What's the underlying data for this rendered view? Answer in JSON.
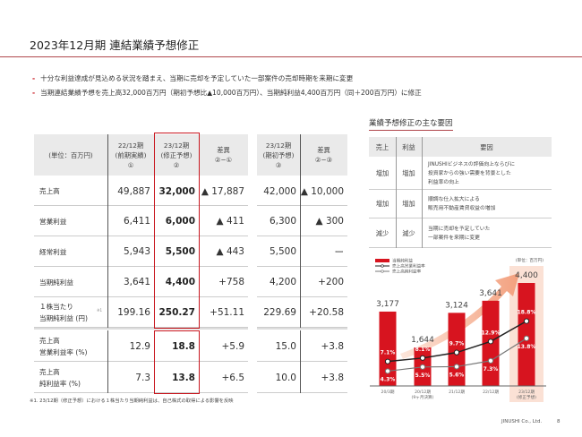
{
  "title": "2023年12月期 連結業績予想修正",
  "bullets": [
    "十分な利益達成が見込める状況を踏まえ、当期に売却を予定していた一部案件の売却時期を来期に変更",
    "当期連結業績予想を売上高32,000百万円（期初予想比▲10,000百万円）、当期純利益4,400百万円（同＋200百万円）に修正"
  ],
  "table": {
    "headers": [
      [
        "(単位：百万円)"
      ],
      [
        "22/12期",
        "(前期実績)",
        "①"
      ],
      [
        "23/12期",
        "(修正予想)",
        "②"
      ],
      [
        "差異",
        "②−①"
      ],
      [
        "23/12期",
        "(期初予想)",
        "③"
      ],
      [
        "差異",
        "②−③"
      ]
    ],
    "rows": [
      {
        "label": [
          "売上高"
        ],
        "values": [
          "49,887",
          "32,000",
          "▲ 17,887",
          "42,000",
          "▲ 10,000"
        ]
      },
      {
        "label": [
          "営業利益"
        ],
        "values": [
          "6,411",
          "6,000",
          "▲ 411",
          "6,300",
          "▲ 300"
        ]
      },
      {
        "label": [
          "経常利益"
        ],
        "values": [
          "5,943",
          "5,500",
          "▲ 443",
          "5,500",
          "ー"
        ]
      },
      {
        "label": [
          "当期純利益"
        ],
        "values": [
          "3,641",
          "4,400",
          "+758",
          "4,200",
          "+200"
        ]
      },
      {
        "label": [
          "１株当たり",
          "当期純利益 (円)"
        ],
        "note": "※1",
        "values": [
          "199.16",
          "250.27",
          "+51.11",
          "229.69",
          "+20.58"
        ]
      },
      {
        "label": [
          "売上高",
          "営業利益率 (%)"
        ],
        "values": [
          "12.9",
          "18.8",
          "+5.9",
          "15.0",
          "+3.8"
        ]
      },
      {
        "label": [
          "売上高",
          "純利益率 (%)"
        ],
        "values": [
          "7.3",
          "13.8",
          "+6.5",
          "10.0",
          "+3.8"
        ]
      }
    ]
  },
  "factors": {
    "title": "業績予想修正の主な要因",
    "headers": [
      "売上",
      "利益",
      "要因"
    ],
    "rows": [
      {
        "sales": "増加",
        "profit": "増加",
        "reason": [
          "JINUSHIビジネスの評価向上ならびに",
          "投資家からの強い需要を背景とした",
          "利益率の向上"
        ]
      },
      {
        "sales": "増加",
        "profit": "増加",
        "reason": [
          "順調な仕入拡大による",
          "販売用不動産賃貸収益の増加"
        ]
      },
      {
        "sales": "減少",
        "profit": "減少",
        "reason": [
          "当期に売却を予定していた",
          "一部案件を来期に変更"
        ]
      }
    ]
  },
  "chart_data": {
    "type": "bar",
    "unit": "(単位：百万円)",
    "legend": [
      "当期純利益",
      "売上高営業利益率",
      "売上高純利益率"
    ],
    "categories": [
      [
        "20/3期"
      ],
      [
        "20/12期",
        "(9ヶ月決算)"
      ],
      [
        "21/12期"
      ],
      [
        "22/12期"
      ],
      [
        "23/12期",
        "(修正予想)"
      ]
    ],
    "bar_series": {
      "name": "当期純利益",
      "values": [
        3177,
        1644,
        3124,
        3641,
        4400
      ],
      "labels": [
        "3,177",
        "1,644",
        "3,124",
        "3,641",
        "4,400"
      ]
    },
    "line_series": [
      {
        "name": "売上高営業利益率",
        "values": [
          7.1,
          8.1,
          9.7,
          12.9,
          18.8
        ],
        "labels": [
          "7.1%",
          "8.1%",
          "9.7%",
          "12.9%",
          "18.8%"
        ]
      },
      {
        "name": "売上高純利益率",
        "values": [
          4.3,
          5.5,
          5.6,
          7.3,
          13.8
        ],
        "labels": [
          "4.3%",
          "5.5%",
          "5.6%",
          "7.3%",
          "13.8%"
        ]
      }
    ],
    "colors": {
      "bar": "#d7141f",
      "op": "#222222",
      "net": "#777777",
      "highlight": "#fbe1d5"
    }
  },
  "footnote": "※1. 23/12期（修正予想）における１株当たり当期純利益は、自己株式の取得による影響を反映",
  "footer": "JINUSHI Co., Ltd.",
  "page": "8"
}
